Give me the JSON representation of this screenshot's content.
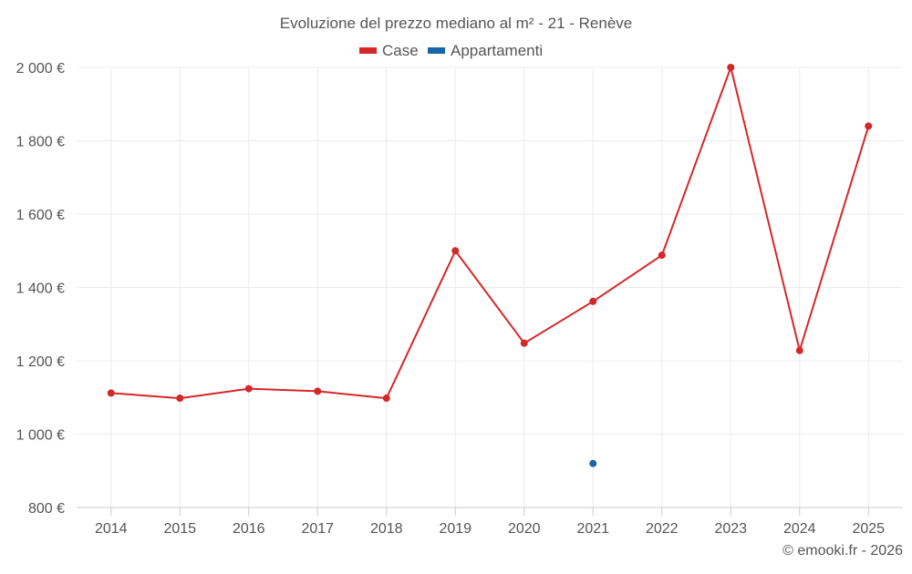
{
  "chart_data": {
    "type": "line",
    "title": "Evoluzione del prezzo mediano al m² - 21 - Renève",
    "categories": [
      "2014",
      "2015",
      "2016",
      "2017",
      "2018",
      "2019",
      "2020",
      "2021",
      "2022",
      "2023",
      "2024",
      "2025"
    ],
    "series": [
      {
        "name": "Case",
        "color": "#d62728",
        "values": [
          1112,
          1098,
          1124,
          1117,
          1098,
          1500,
          1248,
          1362,
          1488,
          2000,
          1228,
          1840
        ]
      },
      {
        "name": "Appartamenti",
        "color": "#1866a8",
        "values": [
          null,
          null,
          null,
          null,
          null,
          null,
          null,
          920,
          null,
          null,
          null,
          null
        ]
      }
    ],
    "y_ticks": [
      800,
      1000,
      1200,
      1400,
      1600,
      1800,
      2000
    ],
    "y_tick_labels": [
      "800 €",
      "1 000 €",
      "1 200 €",
      "1 400 €",
      "1 600 €",
      "1 800 €",
      "2 000 €"
    ],
    "ylim": [
      800,
      2000
    ],
    "grid": true,
    "legend_position": "top-center"
  },
  "credit": "© emooki.fr - 2026"
}
